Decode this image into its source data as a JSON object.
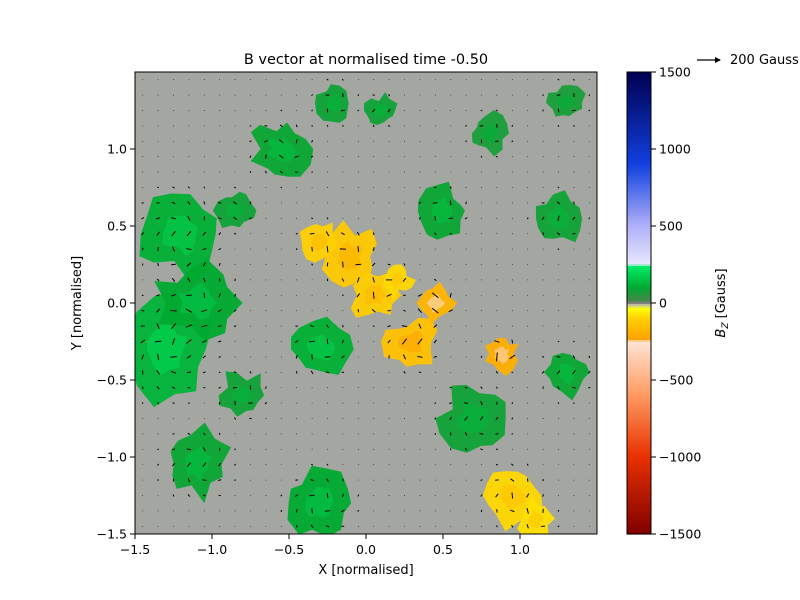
{
  "chart_data": {
    "type": "heatmap",
    "title": "B vector at normalised time -0.50",
    "xlabel": "X [normalised]",
    "ylabel": "Y [normalised]",
    "xlim": [
      -1.5,
      1.5
    ],
    "ylim": [
      -1.5,
      1.5
    ],
    "xticks": [
      -1.5,
      -1.0,
      -0.5,
      0.0,
      0.5,
      1.0
    ],
    "yticks": [
      -1.5,
      -1.0,
      -0.5,
      0.0,
      0.5,
      1.0
    ],
    "xtick_labels": [
      "−1.5",
      "−1.0",
      "−0.5",
      "0.0",
      "0.5",
      "1.0"
    ],
    "ytick_labels": [
      "−1.5",
      "−1.0",
      "−0.5",
      "0.0",
      "0.5",
      "1.0"
    ],
    "colorbar": {
      "label": "B_Z [Gauss]",
      "label_main": "B",
      "label_sub": "Z",
      "label_unit": " [Gauss]",
      "range": [
        -1500,
        1500
      ],
      "ticks": [
        -1500,
        -1000,
        -500,
        0,
        500,
        1000,
        1500
      ],
      "tick_labels": [
        "−1500",
        "−1000",
        "−500",
        "0",
        "500",
        "1000",
        "1500"
      ],
      "stops": [
        {
          "v": -1500,
          "color": "#800000"
        },
        {
          "v": -1000,
          "color": "#e83000"
        },
        {
          "v": -600,
          "color": "#ff9a60"
        },
        {
          "v": -250,
          "color": "#ffe4d4"
        },
        {
          "v": -240,
          "color": "#ffa000"
        },
        {
          "v": -100,
          "color": "#ffd000"
        },
        {
          "v": -40,
          "color": "#ffff00"
        },
        {
          "v": -15,
          "color": "#c8c8a0"
        },
        {
          "v": 0,
          "color": "#808080"
        },
        {
          "v": 15,
          "color": "#44884a"
        },
        {
          "v": 100,
          "color": "#00aa30"
        },
        {
          "v": 240,
          "color": "#00ee66"
        },
        {
          "v": 250,
          "color": "#e8e8ff"
        },
        {
          "v": 500,
          "color": "#b0b0f8"
        },
        {
          "v": 900,
          "color": "#1040e0"
        },
        {
          "v": 1500,
          "color": "#000050"
        }
      ]
    },
    "quiver_key": {
      "label": "200 Gauss",
      "magnitude": 200
    },
    "regions": [
      {
        "polarity": "negative",
        "cx": -0.1,
        "cy": 0.3,
        "r": 0.18,
        "bz": -120
      },
      {
        "polarity": "negative",
        "cx": 0.05,
        "cy": 0.05,
        "r": 0.15,
        "bz": -110
      },
      {
        "polarity": "negative",
        "cx": -0.3,
        "cy": 0.4,
        "r": 0.12,
        "bz": -100
      },
      {
        "polarity": "negative",
        "cx": 0.3,
        "cy": -0.25,
        "r": 0.17,
        "bz": -140
      },
      {
        "polarity": "negative",
        "cx": 0.45,
        "cy": 0.0,
        "r": 0.12,
        "bz": -180
      },
      {
        "polarity": "negative",
        "cx": 0.88,
        "cy": -0.33,
        "r": 0.1,
        "bz": -200
      },
      {
        "polarity": "negative",
        "cx": 0.95,
        "cy": -1.25,
        "r": 0.18,
        "bz": -90
      },
      {
        "polarity": "negative",
        "cx": 1.1,
        "cy": -1.4,
        "r": 0.12,
        "bz": -80
      },
      {
        "polarity": "negative",
        "cx": 0.2,
        "cy": 0.15,
        "r": 0.1,
        "bz": -90
      },
      {
        "polarity": "positive",
        "cx": -1.3,
        "cy": -0.3,
        "r": 0.28,
        "bz": 120
      },
      {
        "polarity": "positive",
        "cx": -1.2,
        "cy": 0.45,
        "r": 0.25,
        "bz": 110
      },
      {
        "polarity": "positive",
        "cx": -1.1,
        "cy": 0.0,
        "r": 0.25,
        "bz": 100
      },
      {
        "polarity": "positive",
        "cx": -0.3,
        "cy": -0.3,
        "r": 0.18,
        "bz": 110
      },
      {
        "polarity": "positive",
        "cx": -0.55,
        "cy": 1.0,
        "r": 0.18,
        "bz": 90
      },
      {
        "polarity": "positive",
        "cx": -0.2,
        "cy": 1.3,
        "r": 0.12,
        "bz": 80
      },
      {
        "polarity": "positive",
        "cx": 0.1,
        "cy": 1.25,
        "r": 0.1,
        "bz": 80
      },
      {
        "polarity": "positive",
        "cx": 0.5,
        "cy": 0.6,
        "r": 0.15,
        "bz": 90
      },
      {
        "polarity": "positive",
        "cx": 1.25,
        "cy": 0.55,
        "r": 0.15,
        "bz": 80
      },
      {
        "polarity": "positive",
        "cx": 1.3,
        "cy": -0.45,
        "r": 0.15,
        "bz": 90
      },
      {
        "polarity": "positive",
        "cx": 0.7,
        "cy": -0.75,
        "r": 0.2,
        "bz": 80
      },
      {
        "polarity": "positive",
        "cx": -0.3,
        "cy": -1.3,
        "r": 0.2,
        "bz": 100
      },
      {
        "polarity": "positive",
        "cx": -1.1,
        "cy": -1.05,
        "r": 0.2,
        "bz": 90
      },
      {
        "polarity": "positive",
        "cx": -0.8,
        "cy": -0.6,
        "r": 0.15,
        "bz": 80
      },
      {
        "polarity": "positive",
        "cx": -0.85,
        "cy": 0.6,
        "r": 0.12,
        "bz": 80
      },
      {
        "polarity": "positive",
        "cx": 0.8,
        "cy": 1.1,
        "r": 0.12,
        "bz": 70
      },
      {
        "polarity": "positive",
        "cx": 1.3,
        "cy": 1.3,
        "r": 0.12,
        "bz": 70
      }
    ]
  }
}
